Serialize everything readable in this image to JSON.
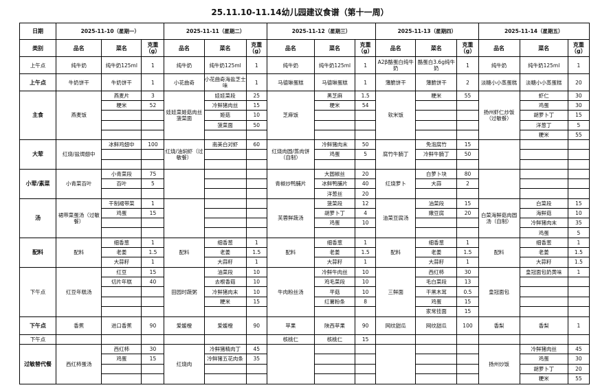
{
  "title": "25.11.10-11.14幼儿园建议食谱（第十一周）",
  "header": {
    "date_label": "日期",
    "category_label": "类别",
    "item_label": "品名",
    "dish_label": "菜名",
    "weight_label": "克重（g）"
  },
  "categories": [
    {
      "label": "上午点",
      "bold": false
    },
    {
      "label": "上午点",
      "bold": true
    },
    {
      "label": "主食",
      "bold": true
    },
    {
      "label": "大荤",
      "bold": true
    },
    {
      "label": "小荤/素菜",
      "bold": true
    },
    {
      "label": "汤",
      "bold": true
    },
    {
      "label": "配料",
      "bold": true
    },
    {
      "label": "下午点",
      "bold": false
    },
    {
      "label": "下午点",
      "bold": true
    },
    {
      "label": "下午点",
      "bold": false
    },
    {
      "label": "过敏替代餐",
      "bold": true
    }
  ],
  "days": [
    {
      "date": "2025-11-10（星期一）",
      "meals": [
        {
          "name": "纯牛奶",
          "items": [
            {
              "dish": "纯牛奶125ml",
              "g": "1"
            }
          ]
        },
        {
          "name": "牛奶饼干",
          "items": [
            {
              "dish": "牛奶饼干",
              "g": "1"
            }
          ]
        },
        {
          "name": "燕麦饭",
          "items": [
            {
              "dish": "燕麦片",
              "g": "3"
            },
            {
              "dish": "粳米",
              "g": "52"
            }
          ]
        },
        {
          "name": "红烧/盐焗翅中",
          "items": [
            {
              "dish": "冰鲜鸡翅中",
              "g": "100"
            }
          ]
        },
        {
          "name": "小青菜百叶",
          "items": [
            {
              "dish": "小青菜段",
              "g": "75"
            },
            {
              "dish": "百叶",
              "g": "5"
            }
          ]
        },
        {
          "name": "裙带菜蛋汤（过敏餐）",
          "items": [
            {
              "dish": "干制裙带菜",
              "g": "1"
            },
            {
              "dish": "鸡蛋",
              "g": "15"
            }
          ]
        },
        {
          "name": "配料",
          "items": [
            {
              "dish": "细香葱",
              "g": "1"
            },
            {
              "dish": "老姜",
              "g": "1.5"
            },
            {
              "dish": "大蒜籽",
              "g": "1"
            }
          ]
        },
        {
          "name": "红豆年糕汤",
          "items": [
            {
              "dish": "红豆",
              "g": "15"
            },
            {
              "dish": "切片年糕",
              "g": "40"
            }
          ]
        },
        {
          "name": "香蕉",
          "items": [
            {
              "dish": "进口香蕉",
              "g": "90"
            }
          ]
        },
        {
          "name": "",
          "items": []
        },
        {
          "name": "西红柿蛋汤",
          "items": [
            {
              "dish": "西红柿",
              "g": "30"
            },
            {
              "dish": "鸡蛋",
              "g": "15"
            }
          ]
        }
      ]
    },
    {
      "date": "2025-11-11（星期二）",
      "meals": [
        {
          "name": "纯牛奶",
          "items": [
            {
              "dish": "纯牛奶125ml",
              "g": "1"
            }
          ]
        },
        {
          "name": "小花曲奇",
          "items": [
            {
              "dish": "小花曲奇海盐芝士味",
              "g": "1"
            }
          ]
        },
        {
          "name": "娃娃菜姬菇肉丝菠菜面",
          "items": [
            {
              "dish": "娃娃菜段",
              "g": "25"
            },
            {
              "dish": "冷鲜猪肉丝",
              "g": "15"
            },
            {
              "dish": "姬菇",
              "g": "10"
            },
            {
              "dish": "菠菜面",
              "g": "50"
            }
          ]
        },
        {
          "name": "红烧/油焖虾（过敏餐）",
          "items": [
            {
              "dish": "南美白对虾",
              "g": "60"
            }
          ]
        },
        {
          "name": "",
          "items": []
        },
        {
          "name": "",
          "items": []
        },
        {
          "name": "配料",
          "items": [
            {
              "dish": "细香葱",
              "g": "1"
            },
            {
              "dish": "老姜",
              "g": "1.5"
            },
            {
              "dish": "大蒜籽",
              "g": "1"
            }
          ]
        },
        {
          "name": "田园时蔬粥",
          "items": [
            {
              "dish": "油菜段",
              "g": "10"
            },
            {
              "dish": "去根香菇",
              "g": "10"
            },
            {
              "dish": "冷鲜猪肉末",
              "g": "10"
            },
            {
              "dish": "粳米",
              "g": "15"
            }
          ]
        },
        {
          "name": "爱媛橙",
          "items": [
            {
              "dish": "爱媛橙",
              "g": "90"
            }
          ]
        },
        {
          "name": "",
          "items": []
        },
        {
          "name": "红烧肉",
          "items": [
            {
              "dish": "冷鲜猪精肉丁",
              "g": "45"
            },
            {
              "dish": "冷鲜猪五花肉条",
              "g": "35"
            }
          ]
        }
      ]
    },
    {
      "date": "2025-11-12（星期三）",
      "meals": [
        {
          "name": "纯牛奶",
          "items": [
            {
              "dish": "纯牛奶125ml",
              "g": "1"
            }
          ]
        },
        {
          "name": "马德琳蛋糕",
          "items": [
            {
              "dish": "马德琳蛋糕",
              "g": "1"
            }
          ]
        },
        {
          "name": "芝麻饭",
          "items": [
            {
              "dish": "黑芝麻",
              "g": "1.5"
            },
            {
              "dish": "粳米",
              "g": "54"
            }
          ]
        },
        {
          "name": "红烧肉圆/蒸肉饼（自制）",
          "items": [
            {
              "dish": "冷鲜猪肉末",
              "g": "50"
            },
            {
              "dish": "鸡蛋",
              "g": "5"
            }
          ]
        },
        {
          "name": "青椒炒鸭脯片",
          "items": [
            {
              "dish": "大圆椒丝",
              "g": "20"
            },
            {
              "dish": "冰鲜鸭脯片",
              "g": "40"
            },
            {
              "dish": "洋葱丝",
              "g": "20"
            }
          ]
        },
        {
          "name": "芙蓉鲜蔬汤",
          "items": [
            {
              "dish": "菠菜段",
              "g": "12"
            },
            {
              "dish": "胡萝卜丁",
              "g": "4"
            },
            {
              "dish": "鸡蛋",
              "g": "10"
            }
          ]
        },
        {
          "name": "配料",
          "items": [
            {
              "dish": "细香葱",
              "g": "1"
            },
            {
              "dish": "老姜",
              "g": "1.5"
            },
            {
              "dish": "大蒜籽",
              "g": "1"
            }
          ]
        },
        {
          "name": "牛肉粉丝汤",
          "items": [
            {
              "dish": "冷鲜牛肉丝",
              "g": "10"
            },
            {
              "dish": "鸡毛菜段",
              "g": "10"
            },
            {
              "dish": "平菇",
              "g": "10"
            },
            {
              "dish": "红薯粉条",
              "g": "8"
            }
          ]
        },
        {
          "name": "苹果",
          "items": [
            {
              "dish": "陕西苹果",
              "g": "90"
            }
          ]
        },
        {
          "name": "核桃仁",
          "items": [
            {
              "dish": "核桃仁",
              "g": "15"
            }
          ]
        },
        {
          "name": "",
          "items": []
        }
      ]
    },
    {
      "date": "2025-11-13（星期四）",
      "meals": [
        {
          "name": "A2β酪蛋白纯牛奶",
          "items": [
            {
              "dish": "酪蛋白3.6g纯牛奶",
              "g": "1"
            }
          ]
        },
        {
          "name": "薄脆饼干",
          "items": [
            {
              "dish": "薄脆饼干",
              "g": "2"
            }
          ]
        },
        {
          "name": "软米饭",
          "items": [
            {
              "dish": "粳米",
              "g": "55"
            }
          ]
        },
        {
          "name": "腐竹牛腩丁",
          "items": [
            {
              "dish": "免泡腐竹",
              "g": "15"
            },
            {
              "dish": "冷鲜牛腩丁",
              "g": "50"
            }
          ]
        },
        {
          "name": "红烧萝卜",
          "items": [
            {
              "dish": "白萝卜块",
              "g": "80"
            },
            {
              "dish": "大蒜",
              "g": "2"
            }
          ]
        },
        {
          "name": "油菜豆腐汤",
          "items": [
            {
              "dish": "油菜段",
              "g": "15"
            },
            {
              "dish": "嫩豆腐",
              "g": "20"
            }
          ]
        },
        {
          "name": "配料",
          "items": [
            {
              "dish": "细香葱",
              "g": "1"
            },
            {
              "dish": "老姜",
              "g": "1.5"
            },
            {
              "dish": "大蒜籽",
              "g": "1"
            }
          ]
        },
        {
          "name": "三鲜面",
          "items": [
            {
              "dish": "西红柿",
              "g": "30"
            },
            {
              "dish": "毛白菜段",
              "g": "13"
            },
            {
              "dish": "干黑木耳",
              "g": "0.5"
            },
            {
              "dish": "鸡蛋",
              "g": "15"
            },
            {
              "dish": "家常挂面",
              "g": "15"
            }
          ]
        },
        {
          "name": "网纹甜瓜",
          "items": [
            {
              "dish": "网纹甜瓜",
              "g": "100"
            }
          ]
        },
        {
          "name": "",
          "items": []
        },
        {
          "name": "",
          "items": []
        }
      ]
    },
    {
      "date": "2025-11-14（星期五）",
      "meals": [
        {
          "name": "纯牛奶",
          "items": [
            {
              "dish": "纯牛奶125ml",
              "g": "1"
            }
          ]
        },
        {
          "name": "淡糖小小蒸蛋糕",
          "items": [
            {
              "dish": "淡糖小小蒸蛋糕",
              "g": "20"
            }
          ]
        },
        {
          "name": "扬州虾仁炒饭（过敏餐）",
          "items": [
            {
              "dish": "虾仁",
              "g": "30"
            },
            {
              "dish": "鸡蛋",
              "g": "30"
            },
            {
              "dish": "胡萝卜丁",
              "g": "15"
            },
            {
              "dish": "洋葱丁",
              "g": "5"
            },
            {
              "dish": "粳米",
              "g": "55"
            }
          ]
        },
        {
          "name": "",
          "items": []
        },
        {
          "name": "",
          "items": []
        },
        {
          "name": "白菜海鲜菇肉圆汤（自制）",
          "items": [
            {
              "dish": "白菜段",
              "g": "15"
            },
            {
              "dish": "海鲜菇",
              "g": "10"
            },
            {
              "dish": "冷鲜猪肉末",
              "g": "35"
            },
            {
              "dish": "鸡蛋",
              "g": "5"
            }
          ]
        },
        {
          "name": "配料",
          "items": [
            {
              "dish": "细香葱",
              "g": "1"
            },
            {
              "dish": "老姜",
              "g": "1.5"
            },
            {
              "dish": "大蒜籽",
              "g": "1.5"
            }
          ]
        },
        {
          "name": "皇冠面包",
          "items": [
            {
              "dish": "皇冠面包奶黄味",
              "g": "1"
            }
          ]
        },
        {
          "name": "香梨",
          "items": [
            {
              "dish": "香梨",
              "g": "1"
            }
          ]
        },
        {
          "name": "",
          "items": []
        },
        {
          "name": "扬州炒饭",
          "items": [
            {
              "dish": "冷鲜猪肉丝",
              "g": "45"
            },
            {
              "dish": "鸡蛋",
              "g": "30"
            },
            {
              "dish": "胡萝卜丁",
              "g": "20"
            },
            {
              "dish": "粳米",
              "g": "55"
            }
          ]
        }
      ]
    }
  ]
}
